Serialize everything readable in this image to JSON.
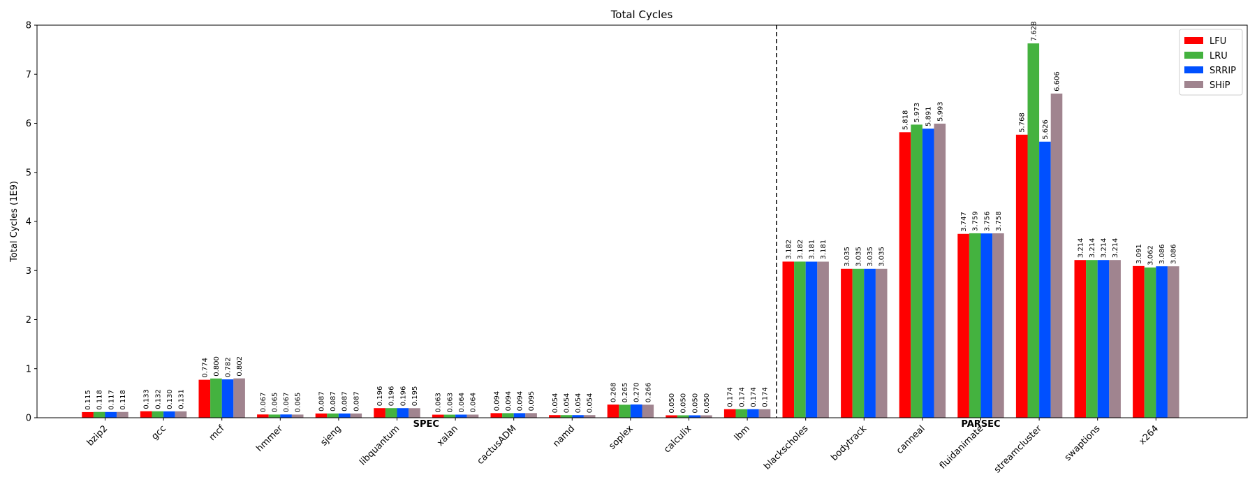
{
  "chart_data": {
    "type": "bar",
    "title": "Total Cycles",
    "xlabel": "",
    "ylabel": "Total Cycles (1E9)",
    "ylim": [
      0,
      8
    ],
    "yticks": [
      0,
      1,
      2,
      3,
      4,
      5,
      6,
      7,
      8
    ],
    "grid": false,
    "legend_position": "top-right",
    "categories": [
      "bzip2",
      "gcc",
      "mcf",
      "hmmer",
      "sjeng",
      "libquantum",
      "xalan",
      "cactusADM",
      "namd",
      "soplex",
      "calculix",
      "lbm",
      "blackscholes",
      "bodytrack",
      "canneal",
      "fluidanimate",
      "streamcluster",
      "swaptions",
      "x264"
    ],
    "groups": [
      {
        "name": "SPEC",
        "from": 0,
        "to": 11
      },
      {
        "name": "PARSEC",
        "from": 12,
        "to": 18
      }
    ],
    "series": [
      {
        "name": "LFU",
        "color": "#ff0000",
        "values": [
          0.115,
          0.133,
          0.774,
          0.067,
          0.087,
          0.196,
          0.063,
          0.094,
          0.054,
          0.268,
          0.05,
          0.174,
          3.182,
          3.035,
          5.818,
          3.747,
          5.768,
          3.214,
          3.091
        ]
      },
      {
        "name": "LRU",
        "color": "#44b23f",
        "values": [
          0.118,
          0.132,
          0.8,
          0.065,
          0.087,
          0.196,
          0.063,
          0.094,
          0.054,
          0.265,
          0.05,
          0.174,
          3.182,
          3.035,
          5.973,
          3.759,
          7.628,
          3.214,
          3.062
        ]
      },
      {
        "name": "SRRIP",
        "color": "#0050ff",
        "values": [
          0.117,
          0.13,
          0.782,
          0.067,
          0.087,
          0.196,
          0.064,
          0.094,
          0.054,
          0.27,
          0.05,
          0.174,
          3.181,
          3.035,
          5.891,
          3.756,
          5.626,
          3.214,
          3.086
        ]
      },
      {
        "name": "SHiP",
        "color": "#a0848f",
        "values": [
          0.118,
          0.131,
          0.802,
          0.065,
          0.087,
          0.195,
          0.064,
          0.095,
          0.054,
          0.266,
          0.05,
          0.174,
          3.181,
          3.035,
          5.993,
          3.758,
          6.606,
          3.214,
          3.086
        ]
      }
    ]
  }
}
